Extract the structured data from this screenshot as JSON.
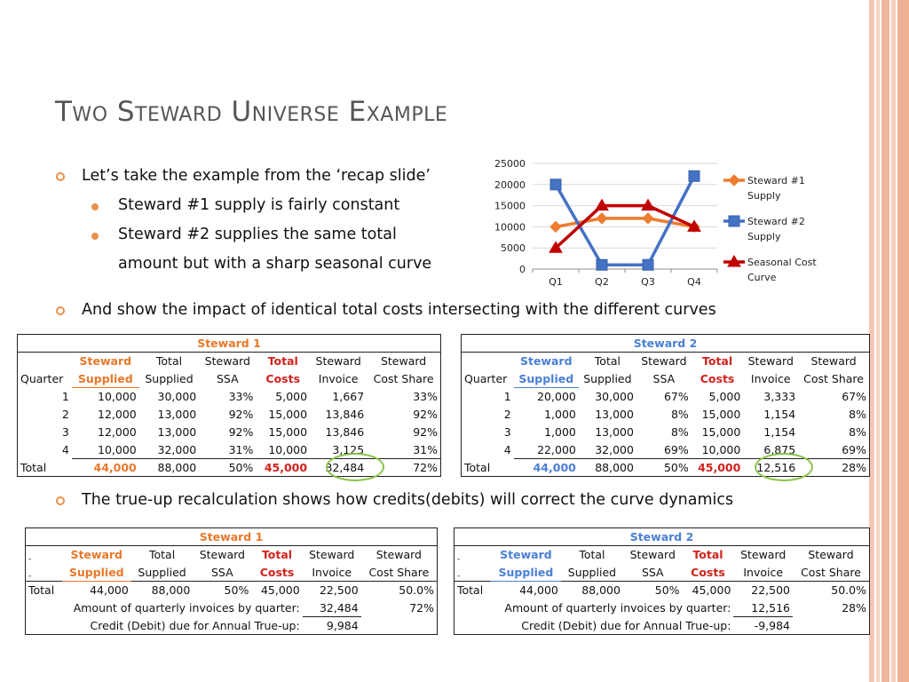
{
  "slide": {
    "title": "Two Steward Universe Example",
    "bullets": {
      "b1": "Let’s take the example from the ‘recap slide’",
      "b1_sub1": "Steward #1 supply is fairly constant",
      "b1_sub2_line1": "Steward #2 supplies the same total",
      "b1_sub2_line2": "amount  but with a sharp seasonal curve",
      "b2": "And show the impact of identical total costs intersecting with the different curves",
      "b3": "The true-up recalculation shows how credits(debits) will correct the curve dynamics"
    }
  },
  "colors": {
    "accent": "#e8914c",
    "steward1": "#ed7d31",
    "steward2": "#4472c4",
    "seasonal": "#c00000",
    "highlight_ellipse": "#8bc34a"
  },
  "chart_data": {
    "type": "line",
    "categories": [
      "Q1",
      "Q2",
      "Q3",
      "Q4"
    ],
    "yticks": [
      "25000",
      "20000",
      "15000",
      "10000",
      "5000",
      "0"
    ],
    "ylim": [
      0,
      25000
    ],
    "grid": true,
    "legend_position": "right",
    "series": [
      {
        "name": "Steward #1 Supply",
        "legend_line1": "Steward #1",
        "legend_line2": "Supply",
        "values": [
          10000,
          12000,
          12000,
          10000
        ],
        "color": "#ed7d31",
        "marker": "diamond"
      },
      {
        "name": "Steward #2 Supply",
        "legend_line1": "Steward #2",
        "legend_line2": "Supply",
        "values": [
          20000,
          1000,
          1000,
          22000
        ],
        "color": "#4472c4",
        "marker": "square"
      },
      {
        "name": "Seasonal Cost Curve",
        "legend_line1": "Seasonal Cost",
        "legend_line2": "Curve",
        "values": [
          5000,
          15000,
          15000,
          10000
        ],
        "color": "#c00000",
        "marker": "triangle"
      }
    ]
  },
  "headers": {
    "quarter": "Quarter",
    "steward_line": "Steward",
    "supplied": "Supplied",
    "total_line": "Total",
    "ssa": "SSA",
    "costs": "Costs",
    "invoice": "Invoice",
    "cost_share": "Cost Share",
    "total_row": "Total",
    "dash": "-"
  },
  "table1": {
    "title": "Steward 1",
    "rows": [
      [
        "1",
        "10,000",
        "30,000",
        "33%",
        "5,000",
        "1,667",
        "33%"
      ],
      [
        "2",
        "12,000",
        "13,000",
        "92%",
        "15,000",
        "13,846",
        "92%"
      ],
      [
        "3",
        "12,000",
        "13,000",
        "92%",
        "15,000",
        "13,846",
        "92%"
      ],
      [
        "4",
        "10,000",
        "32,000",
        "31%",
        "10,000",
        "3,125",
        "31%"
      ]
    ],
    "total": [
      "44,000",
      "88,000",
      "50%",
      "45,000",
      "32,484",
      "72%"
    ]
  },
  "table2": {
    "title": "Steward 2",
    "rows": [
      [
        "1",
        "20,000",
        "30,000",
        "67%",
        "5,000",
        "3,333",
        "67%"
      ],
      [
        "2",
        "1,000",
        "13,000",
        "8%",
        "15,000",
        "1,154",
        "8%"
      ],
      [
        "3",
        "1,000",
        "13,000",
        "8%",
        "15,000",
        "1,154",
        "8%"
      ],
      [
        "4",
        "22,000",
        "32,000",
        "69%",
        "10,000",
        "6,875",
        "69%"
      ]
    ],
    "total": [
      "44,000",
      "88,000",
      "50%",
      "45,000",
      "12,516",
      "28%"
    ]
  },
  "trueup1": {
    "title": "Steward 1",
    "total": [
      "44,000",
      "88,000",
      "50%",
      "45,000",
      "22,500",
      "50.0%"
    ],
    "quarterly_label": "Amount of quarterly invoices by quarter:",
    "quarterly_value": "32,484",
    "quarterly_share": "72%",
    "credit_label": "Credit (Debit) due for Annual True-up:",
    "credit_value": "9,984"
  },
  "trueup2": {
    "title": "Steward 2",
    "total": [
      "44,000",
      "88,000",
      "50%",
      "45,000",
      "22,500",
      "50.0%"
    ],
    "quarterly_label": "Amount of quarterly invoices by quarter:",
    "quarterly_value": "12,516",
    "quarterly_share": "28%",
    "credit_label": "Credit (Debit) due for Annual True-up:",
    "credit_value": "-9,984"
  }
}
